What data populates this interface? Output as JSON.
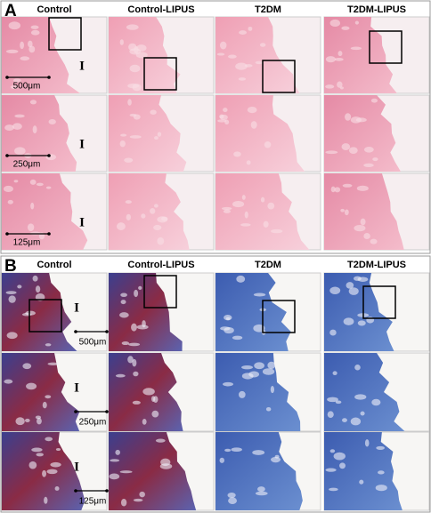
{
  "panels": [
    {
      "label": "A",
      "columns": [
        "Control",
        "Control-LIPUS",
        "T2DM",
        "T2DM-LIPUS"
      ],
      "scale_bars": [
        "500μm",
        "250μm",
        "125μm"
      ],
      "region_labels": [
        "I",
        "I",
        "I"
      ]
    },
    {
      "label": "B",
      "columns": [
        "Control",
        "Control-LIPUS",
        "T2DM",
        "T2DM-LIPUS"
      ],
      "scale_bars": [
        "500μm",
        "250μm",
        "125μm"
      ],
      "region_labels": [
        "I",
        "I",
        "I"
      ]
    }
  ]
}
